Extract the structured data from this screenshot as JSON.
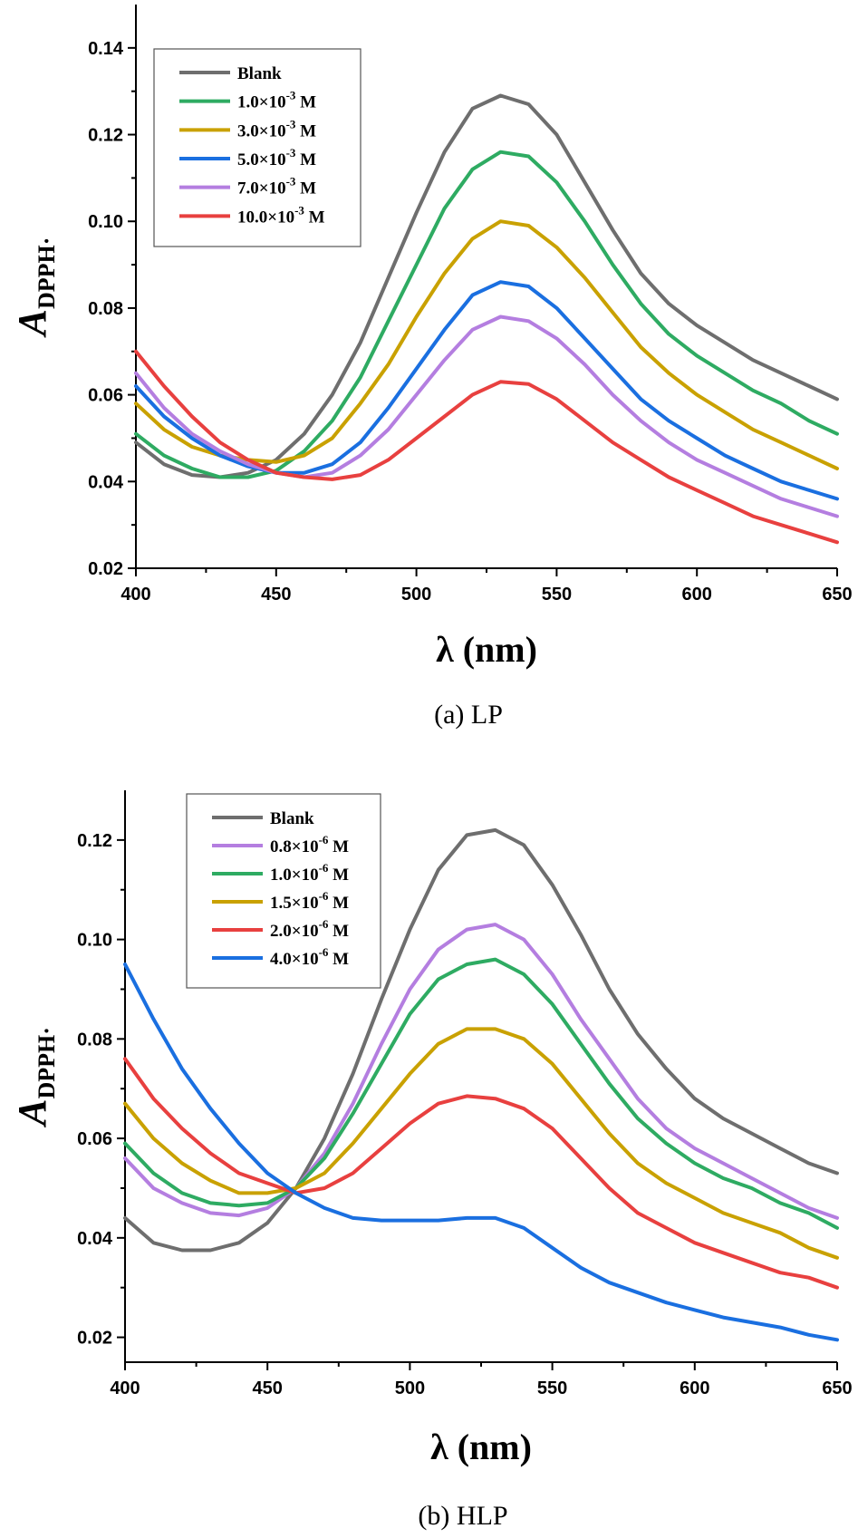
{
  "chart_data": [
    {
      "type": "line",
      "caption": "(a) LP",
      "xlabel": "λ (nm)",
      "ylabel_main": "A",
      "ylabel_sub": "DPPH·",
      "xlim": [
        400,
        650
      ],
      "ylim": [
        0.02,
        0.15
      ],
      "xticks": [
        400,
        450,
        500,
        550,
        600,
        650
      ],
      "xtick_labels": [
        "400",
        "450",
        "500",
        "550",
        "600",
        "650"
      ],
      "yticks": [
        0.02,
        0.04,
        0.06,
        0.08,
        0.1,
        0.12,
        0.14
      ],
      "ytick_labels": [
        "0.02",
        "0.04",
        "0.06",
        "0.08",
        "0.10",
        "0.12",
        "0.14"
      ],
      "legend_position": "top-left",
      "x": [
        400,
        410,
        420,
        430,
        440,
        450,
        460,
        470,
        480,
        490,
        500,
        510,
        520,
        530,
        540,
        550,
        560,
        570,
        580,
        590,
        600,
        610,
        620,
        630,
        640,
        650
      ],
      "series": [
        {
          "name": "Blank",
          "name_main": "Blank",
          "name_exp": "",
          "name_tail": "",
          "color": "#6e6e6e",
          "values": [
            0.049,
            0.044,
            0.0415,
            0.041,
            0.042,
            0.045,
            0.051,
            0.06,
            0.072,
            0.087,
            0.102,
            0.116,
            0.126,
            0.129,
            0.127,
            0.12,
            0.109,
            0.098,
            0.088,
            0.081,
            0.076,
            0.072,
            0.068,
            0.065,
            0.062,
            0.059
          ]
        },
        {
          "name": "1.0×10-3 M",
          "name_main": "1.0×10",
          "name_exp": "-3",
          "name_tail": " M",
          "color": "#2eab62",
          "values": [
            0.051,
            0.046,
            0.043,
            0.041,
            0.041,
            0.0425,
            0.047,
            0.054,
            0.064,
            0.077,
            0.09,
            0.103,
            0.112,
            0.116,
            0.115,
            0.109,
            0.1,
            0.09,
            0.081,
            0.074,
            0.069,
            0.065,
            0.061,
            0.058,
            0.054,
            0.051
          ]
        },
        {
          "name": "3.0×10-3 M",
          "name_main": "3.0×10",
          "name_exp": "-3",
          "name_tail": " M",
          "color": "#c9a100",
          "values": [
            0.058,
            0.052,
            0.048,
            0.046,
            0.045,
            0.0445,
            0.046,
            0.05,
            0.058,
            0.067,
            0.078,
            0.088,
            0.096,
            0.1,
            0.099,
            0.094,
            0.087,
            0.079,
            0.071,
            0.065,
            0.06,
            0.056,
            0.052,
            0.049,
            0.046,
            0.043
          ]
        },
        {
          "name": "5.0×10-3 M",
          "name_main": "5.0×10",
          "name_exp": "-3",
          "name_tail": " M",
          "color": "#1a6fe0",
          "values": [
            0.062,
            0.055,
            0.05,
            0.046,
            0.0435,
            0.042,
            0.042,
            0.044,
            0.049,
            0.057,
            0.066,
            0.075,
            0.083,
            0.086,
            0.085,
            0.08,
            0.073,
            0.066,
            0.059,
            0.054,
            0.05,
            0.046,
            0.043,
            0.04,
            0.038,
            0.036
          ]
        },
        {
          "name": "7.0×10-3 M",
          "name_main": "7.0×10",
          "name_exp": "-3",
          "name_tail": " M",
          "color": "#b47ee0",
          "values": [
            0.065,
            0.057,
            0.051,
            0.047,
            0.044,
            0.042,
            0.041,
            0.042,
            0.046,
            0.052,
            0.06,
            0.068,
            0.075,
            0.078,
            0.077,
            0.073,
            0.067,
            0.06,
            0.054,
            0.049,
            0.045,
            0.042,
            0.039,
            0.036,
            0.034,
            0.032
          ]
        },
        {
          "name": "10.0×10-3 M",
          "name_main": "10.0×10",
          "name_exp": "-3",
          "name_tail": " M",
          "color": "#e8403f",
          "values": [
            0.07,
            0.062,
            0.055,
            0.049,
            0.045,
            0.042,
            0.041,
            0.0405,
            0.0415,
            0.045,
            0.05,
            0.055,
            0.06,
            0.063,
            0.0625,
            0.059,
            0.054,
            0.049,
            0.045,
            0.041,
            0.038,
            0.035,
            0.032,
            0.03,
            0.028,
            0.026
          ]
        }
      ]
    },
    {
      "type": "line",
      "caption": "(b) HLP",
      "xlabel": "λ (nm)",
      "ylabel_main": "A",
      "ylabel_sub": "DPPH·",
      "xlim": [
        400,
        650
      ],
      "ylim": [
        0.015,
        0.13
      ],
      "xticks": [
        400,
        450,
        500,
        550,
        600,
        650
      ],
      "xtick_labels": [
        "400",
        "450",
        "500",
        "550",
        "600",
        "650"
      ],
      "yticks": [
        0.02,
        0.04,
        0.06,
        0.08,
        0.1,
        0.12
      ],
      "ytick_labels": [
        "0.02",
        "0.04",
        "0.06",
        "0.08",
        "0.10",
        "0.12"
      ],
      "legend_position": "top-left",
      "x": [
        400,
        410,
        420,
        430,
        440,
        450,
        460,
        470,
        480,
        490,
        500,
        510,
        520,
        530,
        540,
        550,
        560,
        570,
        580,
        590,
        600,
        610,
        620,
        630,
        640,
        650
      ],
      "series": [
        {
          "name": "Blank",
          "name_main": "Blank",
          "name_exp": "",
          "name_tail": "",
          "color": "#6e6e6e",
          "values": [
            0.044,
            0.039,
            0.0375,
            0.0375,
            0.039,
            0.043,
            0.05,
            0.06,
            0.073,
            0.088,
            0.102,
            0.114,
            0.121,
            0.122,
            0.119,
            0.111,
            0.101,
            0.09,
            0.081,
            0.074,
            0.068,
            0.064,
            0.061,
            0.058,
            0.055,
            0.053
          ]
        },
        {
          "name": "0.8×10-6 M",
          "name_main": "0.8×10",
          "name_exp": "-6",
          "name_tail": " M",
          "color": "#b47ee0",
          "values": [
            0.056,
            0.05,
            0.047,
            0.045,
            0.0445,
            0.046,
            0.05,
            0.057,
            0.067,
            0.079,
            0.09,
            0.098,
            0.102,
            0.103,
            0.1,
            0.093,
            0.084,
            0.076,
            0.068,
            0.062,
            0.058,
            0.055,
            0.052,
            0.049,
            0.046,
            0.044
          ]
        },
        {
          "name": "1.0×10-6 M",
          "name_main": "1.0×10",
          "name_exp": "-6",
          "name_tail": " M",
          "color": "#2eab62",
          "values": [
            0.059,
            0.053,
            0.049,
            0.047,
            0.0465,
            0.047,
            0.05,
            0.056,
            0.065,
            0.075,
            0.085,
            0.092,
            0.095,
            0.096,
            0.093,
            0.087,
            0.079,
            0.071,
            0.064,
            0.059,
            0.055,
            0.052,
            0.05,
            0.047,
            0.045,
            0.042
          ]
        },
        {
          "name": "1.5×10-6 M",
          "name_main": "1.5×10",
          "name_exp": "-6",
          "name_tail": " M",
          "color": "#c9a100",
          "values": [
            0.067,
            0.06,
            0.055,
            0.0515,
            0.049,
            0.049,
            0.05,
            0.053,
            0.059,
            0.066,
            0.073,
            0.079,
            0.082,
            0.082,
            0.08,
            0.075,
            0.068,
            0.061,
            0.055,
            0.051,
            0.048,
            0.045,
            0.043,
            0.041,
            0.038,
            0.036
          ]
        },
        {
          "name": "2.0×10-6 M",
          "name_main": "2.0×10",
          "name_exp": "-6",
          "name_tail": " M",
          "color": "#e8403f",
          "values": [
            0.076,
            0.068,
            0.062,
            0.057,
            0.053,
            0.051,
            0.049,
            0.05,
            0.053,
            0.058,
            0.063,
            0.067,
            0.0685,
            0.068,
            0.066,
            0.062,
            0.056,
            0.05,
            0.045,
            0.042,
            0.039,
            0.037,
            0.035,
            0.033,
            0.032,
            0.03
          ]
        },
        {
          "name": "4.0×10-6 M",
          "name_main": "4.0×10",
          "name_exp": "-6",
          "name_tail": " M",
          "color": "#1a6fe0",
          "values": [
            0.095,
            0.084,
            0.074,
            0.066,
            0.059,
            0.053,
            0.049,
            0.046,
            0.044,
            0.0435,
            0.0435,
            0.0435,
            0.044,
            0.044,
            0.042,
            0.038,
            0.034,
            0.031,
            0.029,
            0.027,
            0.0255,
            0.024,
            0.023,
            0.022,
            0.0205,
            0.0195
          ]
        }
      ]
    }
  ]
}
